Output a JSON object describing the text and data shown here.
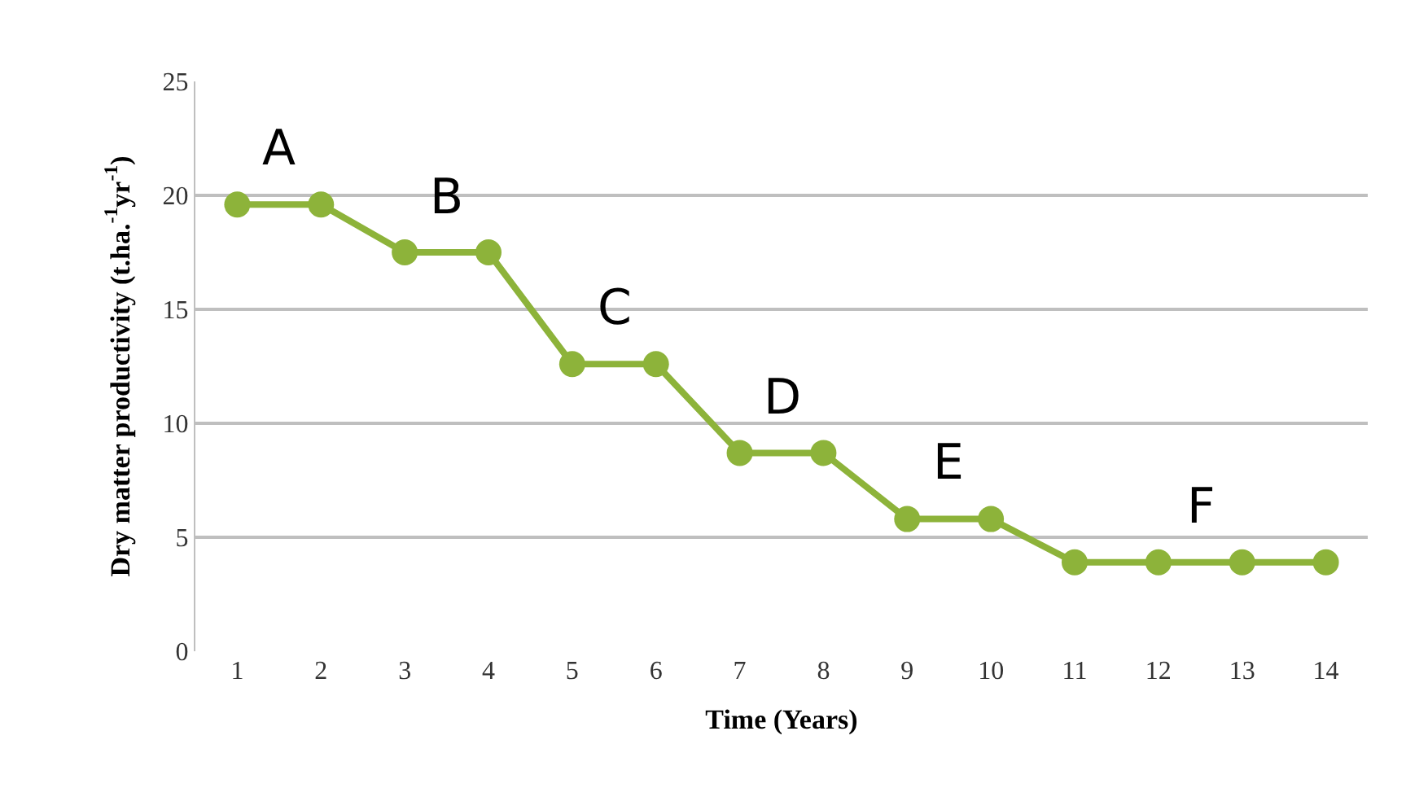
{
  "chart_data": {
    "type": "line",
    "xlabel": "Time (Years)",
    "ylabel": "Dry matter productivity (t.ha.$^{-1}$yr$^{-1}$)",
    "x": [
      1,
      2,
      3,
      4,
      5,
      6,
      7,
      8,
      9,
      10,
      11,
      12,
      13,
      14
    ],
    "values": [
      19.6,
      19.6,
      17.5,
      17.5,
      12.6,
      12.6,
      8.7,
      8.7,
      5.8,
      5.8,
      3.9,
      3.9,
      3.9,
      3.9
    ],
    "color": "#8db33a",
    "marker": "circle",
    "line_style": "solid",
    "xlim": [
      0.5,
      14.5
    ],
    "xticks": [
      1,
      2,
      3,
      4,
      5,
      6,
      7,
      8,
      9,
      10,
      11,
      12,
      13,
      14
    ],
    "ylim": [
      0,
      25
    ],
    "yticks": [
      0,
      5,
      10,
      15,
      20,
      25
    ],
    "grid": "y",
    "legend": false,
    "annotations": [
      "A",
      "B",
      "C",
      "D",
      "E",
      "F"
    ]
  }
}
